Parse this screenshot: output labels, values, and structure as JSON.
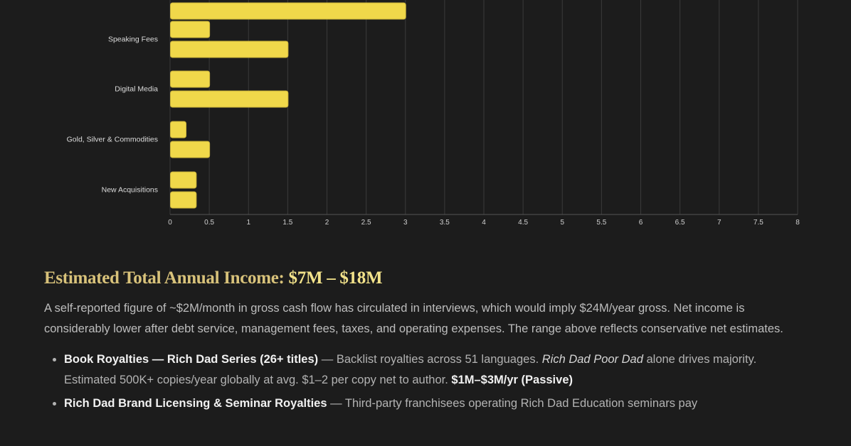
{
  "colors": {
    "background": "#1c1c1c",
    "bar_fill": "#f0d84a",
    "bar_stroke": "#c9b23a",
    "grid": "#3a3a3a",
    "heading_gold": "#d8c27a",
    "heading_amount": "#f2e28a"
  },
  "chart_data": {
    "type": "bar",
    "orientation": "horizontal",
    "categories": [
      "",
      "Speaking Fees",
      "Digital Media",
      "Gold, Silver & Commodities",
      "New Acquisitions"
    ],
    "series": [
      {
        "values": [
          null,
          0.5,
          0.5,
          0.2,
          0.33
        ]
      },
      {
        "values": [
          3,
          1.5,
          1.5,
          0.5,
          0.33
        ]
      }
    ],
    "xlim": [
      0,
      8
    ],
    "xticks": [
      "0",
      "0.5",
      "1",
      "1.5",
      "2",
      "2.5",
      "3",
      "3.5",
      "4",
      "4.5",
      "5",
      "5.5",
      "6",
      "6.5",
      "7",
      "7.5",
      "8"
    ],
    "grid": "vertical",
    "legend": "none"
  },
  "summary": {
    "heading_label": "Estimated Total Annual Income:",
    "heading_amount": "$7M – $18M",
    "paragraph": "A self-reported figure of ~$2M/month in gross cash flow has circulated in interviews, which would imply $24M/year gross. Net income is considerably lower after debt service, management fees, taxes, and operating expenses. The range above reflects conservative net estimates.",
    "items": [
      {
        "title": "Book Royalties — Rich Dad Series (26+ titles)",
        "text_before": " — Backlist royalties across 51 languages. ",
        "italic": "Rich Dad Poor Dad",
        "text_after": " alone drives majority. Estimated 500K+ copies/year globally at avg. $1–2 per copy net to author. ",
        "value": "$1M–$3M/yr (Passive)"
      },
      {
        "title": "Rich Dad Brand Licensing & Seminar Royalties",
        "text_before": " — Third-party franchisees operating Rich Dad Education seminars pay",
        "italic": "",
        "text_after": "",
        "value": ""
      }
    ]
  }
}
